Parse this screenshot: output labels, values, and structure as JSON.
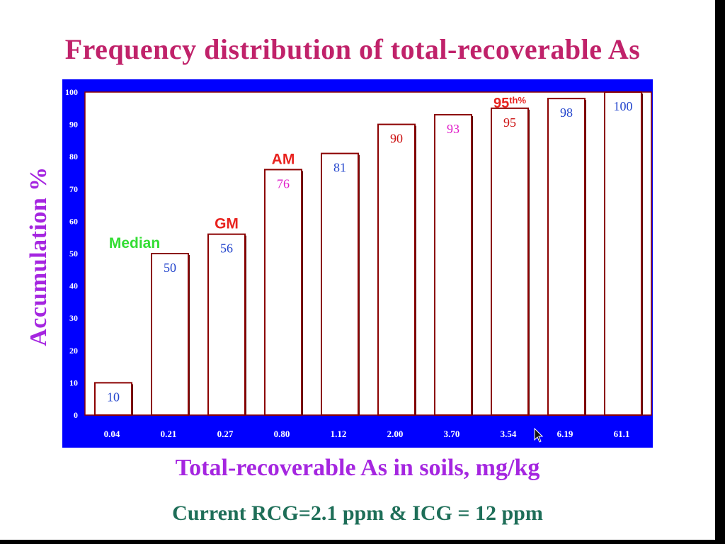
{
  "colors": {
    "title": "#C0226A",
    "axis_label": "#A526E0",
    "footer": "#1E6E58",
    "frame": "#0000FF",
    "plot_bg": "#ffffff",
    "bar_edge": "#8B0000",
    "tick_text": "#ffffff",
    "value_blue": "#2244CC",
    "value_red": "#CC1111",
    "value_magenta": "#E01AC8",
    "annot_green": "#33DD33",
    "annot_red": "#E8221E"
  },
  "chart_data": {
    "type": "bar",
    "title": "Frequency distribution of total-recoverable As",
    "xlabel": "Total-recoverable As in soils, mg/kg",
    "ylabel": "Accumulation %",
    "categories": [
      "0.04",
      "0.21",
      "0.27",
      "0.80",
      "1.12",
      "2.00",
      "3.70",
      "3.54",
      "6.19",
      "61.1"
    ],
    "values": [
      10,
      50,
      56,
      76,
      81,
      90,
      93,
      95,
      98,
      100
    ],
    "value_labels": [
      "10",
      "50",
      "56",
      "76",
      "81",
      "90",
      "93",
      "95",
      "98",
      "100"
    ],
    "value_label_colors": [
      "value_blue",
      "value_blue",
      "value_blue",
      "value_magenta",
      "value_blue",
      "value_red",
      "value_magenta",
      "value_red",
      "value_blue",
      "value_blue"
    ],
    "ylim": [
      0,
      100
    ],
    "yticks": [
      0,
      10,
      20,
      30,
      40,
      50,
      60,
      70,
      80,
      90,
      100
    ],
    "grid": false,
    "legend": "none",
    "annotations": [
      {
        "text": "Median",
        "bar_index": 1,
        "color": "annot_green"
      },
      {
        "text": "GM",
        "bar_index": 2,
        "color": "annot_red"
      },
      {
        "text": "AM",
        "bar_index": 3,
        "color": "annot_red"
      },
      {
        "text": "95",
        "superscript": "th%",
        "bar_index": 7,
        "color": "annot_red"
      }
    ]
  },
  "footer": "Current RCG=2.1 ppm & ICG = 12 ppm"
}
